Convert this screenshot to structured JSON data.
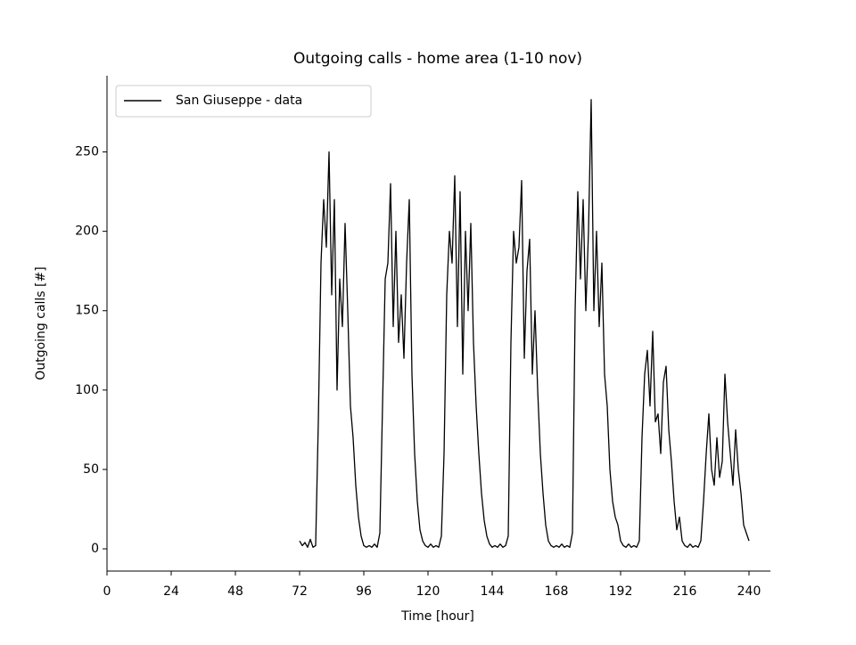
{
  "chart_data": {
    "type": "line",
    "title": "Outgoing calls - home area (1-10 nov)",
    "x_label": "Time [hour]",
    "y_label": "Outgoing calls [#]",
    "legend": "upper left",
    "xlim": [
      0,
      248
    ],
    "ylim": [
      -14,
      298
    ],
    "xticks": [
      0,
      24,
      48,
      72,
      96,
      120,
      144,
      168,
      192,
      216,
      240
    ],
    "yticks": [
      0,
      50,
      100,
      150,
      200,
      250
    ],
    "x": [
      72,
      73,
      74,
      75,
      76,
      77,
      78,
      79,
      80,
      81,
      82,
      83,
      84,
      85,
      86,
      87,
      88,
      89,
      90,
      91,
      92,
      93,
      94,
      95,
      96,
      97,
      98,
      99,
      100,
      101,
      102,
      103,
      104,
      105,
      106,
      107,
      108,
      109,
      110,
      111,
      112,
      113,
      114,
      115,
      116,
      117,
      118,
      119,
      120,
      121,
      122,
      123,
      124,
      125,
      126,
      127,
      128,
      129,
      130,
      131,
      132,
      133,
      134,
      135,
      136,
      137,
      138,
      139,
      140,
      141,
      142,
      143,
      144,
      145,
      146,
      147,
      148,
      149,
      150,
      151,
      152,
      153,
      154,
      155,
      156,
      157,
      158,
      159,
      160,
      161,
      162,
      163,
      164,
      165,
      166,
      167,
      168,
      169,
      170,
      171,
      172,
      173,
      174,
      175,
      176,
      177,
      178,
      179,
      180,
      181,
      182,
      183,
      184,
      185,
      186,
      187,
      188,
      189,
      190,
      191,
      192,
      193,
      194,
      195,
      196,
      197,
      198,
      199,
      200,
      201,
      202,
      203,
      204,
      205,
      206,
      207,
      208,
      209,
      210,
      211,
      212,
      213,
      214,
      215,
      216,
      217,
      218,
      219,
      220,
      221,
      222,
      223,
      224,
      225,
      226,
      227,
      228,
      229,
      230,
      231,
      232,
      233,
      234,
      235,
      236,
      237,
      238,
      239,
      240
    ],
    "series": [
      {
        "name": "San Giuseppe - data",
        "color": "#000000",
        "values": [
          5,
          2,
          4,
          1,
          6,
          1,
          2,
          80,
          180,
          220,
          190,
          250,
          160,
          220,
          100,
          170,
          140,
          205,
          150,
          90,
          70,
          40,
          20,
          8,
          2,
          1,
          2,
          1,
          3,
          1,
          10,
          90,
          170,
          180,
          230,
          140,
          200,
          130,
          160,
          120,
          180,
          220,
          110,
          60,
          30,
          12,
          5,
          2,
          1,
          3,
          1,
          2,
          1,
          8,
          60,
          160,
          200,
          180,
          235,
          140,
          225,
          110,
          200,
          150,
          205,
          130,
          90,
          60,
          35,
          18,
          8,
          3,
          1,
          2,
          1,
          3,
          1,
          2,
          8,
          130,
          200,
          180,
          190,
          232,
          120,
          175,
          195,
          110,
          150,
          100,
          60,
          35,
          15,
          5,
          2,
          1,
          2,
          1,
          3,
          1,
          2,
          1,
          10,
          150,
          225,
          170,
          220,
          150,
          200,
          283,
          150,
          200,
          140,
          180,
          110,
          90,
          50,
          30,
          20,
          15,
          5,
          2,
          1,
          3,
          1,
          2,
          1,
          5,
          70,
          110,
          125,
          90,
          137,
          80,
          85,
          60,
          105,
          115,
          75,
          55,
          30,
          12,
          20,
          5,
          2,
          1,
          3,
          1,
          2,
          1,
          5,
          30,
          60,
          85,
          50,
          40,
          70,
          45,
          55,
          110,
          80,
          60,
          40,
          75,
          50,
          35,
          15,
          10,
          5
        ]
      }
    ]
  }
}
